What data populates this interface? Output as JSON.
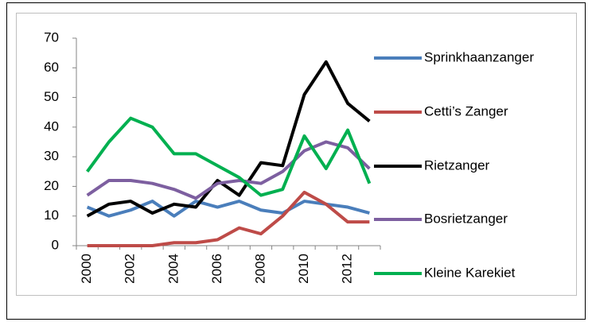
{
  "chart_data": {
    "type": "line",
    "categories": [
      "2000",
      null,
      "2002",
      null,
      "2004",
      null,
      "2006",
      null,
      "2008",
      null,
      "2010",
      null,
      "2012",
      null
    ],
    "series": [
      {
        "name": "Sprinkhaanzanger",
        "color": "#4a7ebb",
        "values": [
          13,
          10,
          12,
          15,
          10,
          15,
          13,
          15,
          12,
          11,
          15,
          14,
          13,
          11
        ]
      },
      {
        "name": "Cetti’s Zanger",
        "color": "#be4b48",
        "values": [
          0,
          0,
          0,
          0,
          1,
          1,
          2,
          6,
          4,
          10,
          18,
          14,
          8,
          8
        ]
      },
      {
        "name": "Rietzanger",
        "color": "#000000",
        "values": [
          10,
          14,
          15,
          11,
          14,
          13,
          22,
          17,
          28,
          27,
          51,
          62,
          48,
          42
        ]
      },
      {
        "name": "Bosrietzanger",
        "color": "#7d5fa0",
        "values": [
          17,
          22,
          22,
          21,
          19,
          16,
          21,
          22,
          21,
          25,
          32,
          35,
          33,
          26
        ]
      },
      {
        "name": "Kleine Karekiet",
        "color": "#00b050",
        "values": [
          25,
          35,
          43,
          40,
          31,
          31,
          27,
          23,
          17,
          19,
          37,
          26,
          39,
          21
        ]
      }
    ],
    "ylim": [
      0,
      70
    ],
    "yticks": [
      0,
      10,
      20,
      30,
      40,
      50,
      60,
      70
    ],
    "grid": false,
    "legend": "right"
  }
}
